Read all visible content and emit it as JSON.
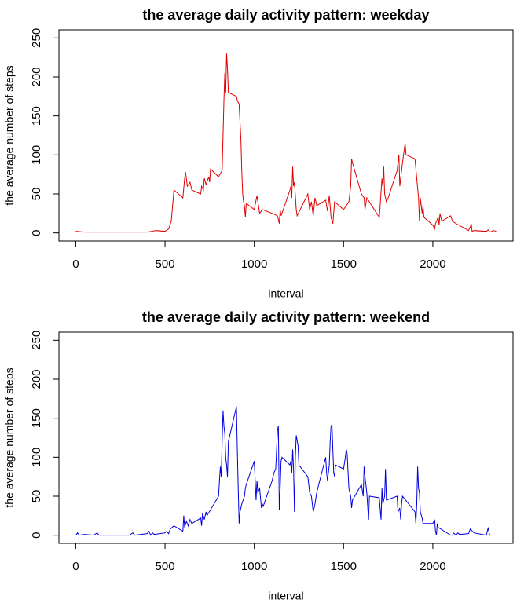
{
  "chart_data": [
    {
      "type": "line",
      "title": "the average daily activity pattern: weekday",
      "xlabel": "interval",
      "ylabel": "the average number of steps",
      "xlim": [
        -94.2,
        2449.2
      ],
      "ylim": [
        -10.4,
        260.4
      ],
      "xticks": [
        0,
        500,
        1000,
        1500,
        2000
      ],
      "yticks": [
        0,
        50,
        100,
        150,
        200,
        250
      ],
      "x": [
        0,
        50,
        100,
        200,
        300,
        400,
        450,
        500,
        520,
        535,
        550,
        600,
        610,
        615,
        625,
        640,
        650,
        700,
        705,
        715,
        720,
        730,
        745,
        750,
        755,
        800,
        820,
        830,
        835,
        840,
        845,
        850,
        855,
        900,
        905,
        915,
        925,
        930,
        935,
        940,
        945,
        950,
        955,
        1000,
        1010,
        1015,
        1030,
        1045,
        1100,
        1130,
        1140,
        1145,
        1150,
        1200,
        1205,
        1210,
        1215,
        1220,
        1225,
        1230,
        1235,
        1240,
        1300,
        1310,
        1320,
        1330,
        1340,
        1350,
        1400,
        1410,
        1420,
        1430,
        1440,
        1450,
        1500,
        1530,
        1540,
        1545,
        1550,
        1600,
        1615,
        1620,
        1630,
        1700,
        1705,
        1715,
        1720,
        1725,
        1730,
        1740,
        1750,
        1800,
        1810,
        1815,
        1830,
        1845,
        1850,
        1900,
        1910,
        1920,
        1925,
        1930,
        1940,
        1945,
        1950,
        2000,
        2010,
        2015,
        2020,
        2030,
        2035,
        2040,
        2050,
        2100,
        2110,
        2130,
        2200,
        2210,
        2215,
        2220,
        2230,
        2300,
        2310,
        2320,
        2340,
        2355
      ],
      "series": [
        {
          "color": "#e00000",
          "values": [
            2,
            1,
            1,
            1,
            1,
            1,
            3,
            2,
            5,
            15,
            55,
            45,
            70,
            78,
            60,
            65,
            55,
            50,
            60,
            55,
            70,
            62,
            72,
            65,
            82,
            72,
            80,
            170,
            205,
            180,
            230,
            210,
            180,
            175,
            170,
            165,
            120,
            80,
            50,
            40,
            35,
            20,
            38,
            30,
            42,
            48,
            25,
            30,
            25,
            22,
            12,
            30,
            22,
            55,
            60,
            45,
            85,
            60,
            65,
            48,
            30,
            22,
            50,
            30,
            40,
            22,
            45,
            35,
            42,
            28,
            48,
            20,
            12,
            40,
            30,
            40,
            60,
            95,
            90,
            50,
            45,
            30,
            45,
            20,
            35,
            70,
            60,
            85,
            50,
            40,
            45,
            80,
            100,
            60,
            90,
            115,
            100,
            95,
            70,
            45,
            15,
            45,
            25,
            35,
            20,
            10,
            5,
            12,
            15,
            20,
            10,
            25,
            15,
            22,
            15,
            12,
            3,
            8,
            12,
            2,
            3,
            2,
            4,
            1,
            3,
            2
          ]
        }
      ]
    },
    {
      "type": "line",
      "title": "the average daily activity pattern: weekend",
      "xlabel": "interval",
      "ylabel": "the average number of steps",
      "xlim": [
        -94.2,
        2449.2
      ],
      "ylim": [
        -10.4,
        260.4
      ],
      "xticks": [
        0,
        500,
        1000,
        1500,
        2000
      ],
      "yticks": [
        0,
        50,
        100,
        150,
        200,
        250
      ],
      "x": [
        0,
        10,
        20,
        50,
        100,
        120,
        130,
        200,
        300,
        320,
        330,
        400,
        410,
        420,
        430,
        440,
        500,
        510,
        520,
        530,
        550,
        600,
        605,
        610,
        620,
        630,
        640,
        650,
        700,
        705,
        710,
        720,
        730,
        735,
        800,
        805,
        810,
        815,
        820,
        825,
        830,
        835,
        840,
        845,
        850,
        855,
        900,
        905,
        910,
        915,
        920,
        930,
        945,
        950,
        955,
        1000,
        1010,
        1015,
        1020,
        1030,
        1040,
        1045,
        1050,
        1100,
        1110,
        1120,
        1130,
        1135,
        1140,
        1145,
        1150,
        1155,
        1200,
        1205,
        1210,
        1215,
        1220,
        1225,
        1230,
        1235,
        1245,
        1250,
        1300,
        1310,
        1320,
        1330,
        1340,
        1350,
        1400,
        1405,
        1410,
        1420,
        1425,
        1430,
        1435,
        1440,
        1445,
        1450,
        1455,
        1500,
        1510,
        1515,
        1520,
        1530,
        1540,
        1545,
        1550,
        1600,
        1610,
        1615,
        1620,
        1630,
        1640,
        1645,
        1700,
        1710,
        1715,
        1720,
        1730,
        1735,
        1740,
        1800,
        1805,
        1815,
        1820,
        1825,
        1830,
        1900,
        1905,
        1910,
        1915,
        1920,
        1925,
        1930,
        1940,
        1945,
        2000,
        2010,
        2015,
        2020,
        2025,
        2030,
        2100,
        2110,
        2115,
        2120,
        2130,
        2140,
        2150,
        2200,
        2210,
        2230,
        2300,
        2310,
        2315,
        2320
      ],
      "series": [
        {
          "color": "#0000e0",
          "values": [
            0,
            3,
            0,
            1,
            0,
            3,
            0,
            0,
            0,
            3,
            0,
            2,
            5,
            0,
            3,
            1,
            3,
            5,
            2,
            8,
            12,
            5,
            25,
            10,
            18,
            12,
            20,
            15,
            22,
            12,
            28,
            20,
            30,
            25,
            50,
            70,
            88,
            75,
            120,
            160,
            140,
            130,
            100,
            90,
            75,
            120,
            165,
            110,
            60,
            15,
            30,
            40,
            50,
            60,
            65,
            95,
            45,
            70,
            55,
            60,
            35,
            40,
            37,
            70,
            80,
            85,
            135,
            140,
            32,
            60,
            95,
            100,
            90,
            95,
            80,
            110,
            85,
            30,
            100,
            128,
            115,
            90,
            75,
            55,
            50,
            30,
            40,
            55,
            100,
            80,
            70,
            90,
            120,
            140,
            142,
            110,
            80,
            75,
            90,
            85,
            100,
            110,
            105,
            60,
            50,
            35,
            45,
            65,
            50,
            88,
            75,
            55,
            20,
            50,
            48,
            20,
            60,
            40,
            50,
            85,
            45,
            50,
            30,
            35,
            20,
            40,
            50,
            30,
            15,
            40,
            88,
            60,
            55,
            30,
            22,
            15,
            15,
            20,
            5,
            0,
            15,
            10,
            0,
            0,
            3,
            2,
            0,
            3,
            1,
            2,
            8,
            3,
            0,
            10,
            3,
            0
          ]
        }
      ]
    }
  ]
}
